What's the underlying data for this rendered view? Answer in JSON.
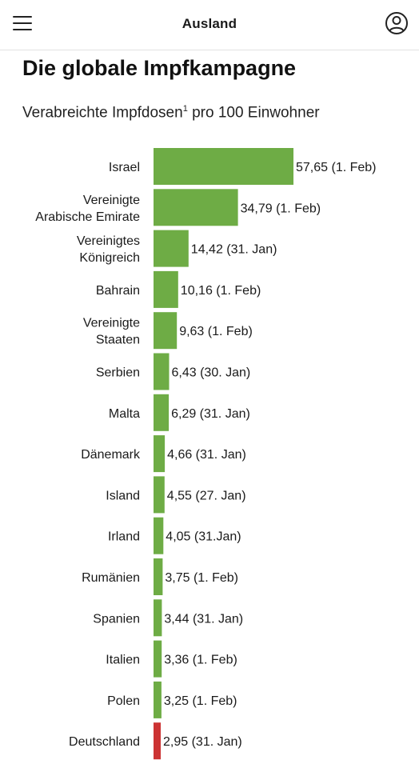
{
  "header": {
    "section": "Ausland",
    "menu_icon": "hamburger-menu-icon",
    "profile_icon": "user-profile-icon"
  },
  "chart_data": {
    "type": "bar",
    "orientation": "horizontal",
    "title": "Die globale Impfkampagne",
    "subtitle": {
      "text_before": "Verabreichte Impfdosen",
      "footnote": "1",
      "text_after": " pro 100 Einwohner"
    },
    "colors": {
      "default": "#6eac45",
      "highlight": "#cc3333"
    },
    "xlim": [
      0,
      57.65
    ],
    "grid": false,
    "legend": "none",
    "bars": [
      {
        "category": [
          "Israel"
        ],
        "value": 57.65,
        "label": "57,65 (1. Feb)"
      },
      {
        "category": [
          "Vereinigte",
          "Arabische Emirate"
        ],
        "value": 34.79,
        "label": "34,79 (1. Feb)"
      },
      {
        "category": [
          "Vereinigtes",
          "Königreich"
        ],
        "value": 14.42,
        "label": "14,42 (31. Jan)"
      },
      {
        "category": [
          "Bahrain"
        ],
        "value": 10.16,
        "label": "10,16 (1. Feb)"
      },
      {
        "category": [
          "Vereinigte",
          "Staaten"
        ],
        "value": 9.63,
        "label": "9,63 (1. Feb)"
      },
      {
        "category": [
          "Serbien"
        ],
        "value": 6.43,
        "label": "6,43 (30. Jan)"
      },
      {
        "category": [
          "Malta"
        ],
        "value": 6.29,
        "label": "6,29 (31. Jan)"
      },
      {
        "category": [
          "Dänemark"
        ],
        "value": 4.66,
        "label": "4,66 (31. Jan)"
      },
      {
        "category": [
          "Island"
        ],
        "value": 4.55,
        "label": "4,55 (27. Jan)"
      },
      {
        "category": [
          "Irland"
        ],
        "value": 4.05,
        "label": "4,05 (31.Jan)"
      },
      {
        "category": [
          "Rumänien"
        ],
        "value": 3.75,
        "label": "3,75 (1. Feb)"
      },
      {
        "category": [
          "Spanien"
        ],
        "value": 3.44,
        "label": "3,44 (31. Jan)"
      },
      {
        "category": [
          "Italien"
        ],
        "value": 3.36,
        "label": "3,36 (1. Feb)"
      },
      {
        "category": [
          "Polen"
        ],
        "value": 3.25,
        "label": "3,25 (1. Feb)"
      },
      {
        "category": [
          "Deutschland"
        ],
        "value": 2.95,
        "label": "2,95 (31. Jan)",
        "highlight": true
      }
    ]
  }
}
